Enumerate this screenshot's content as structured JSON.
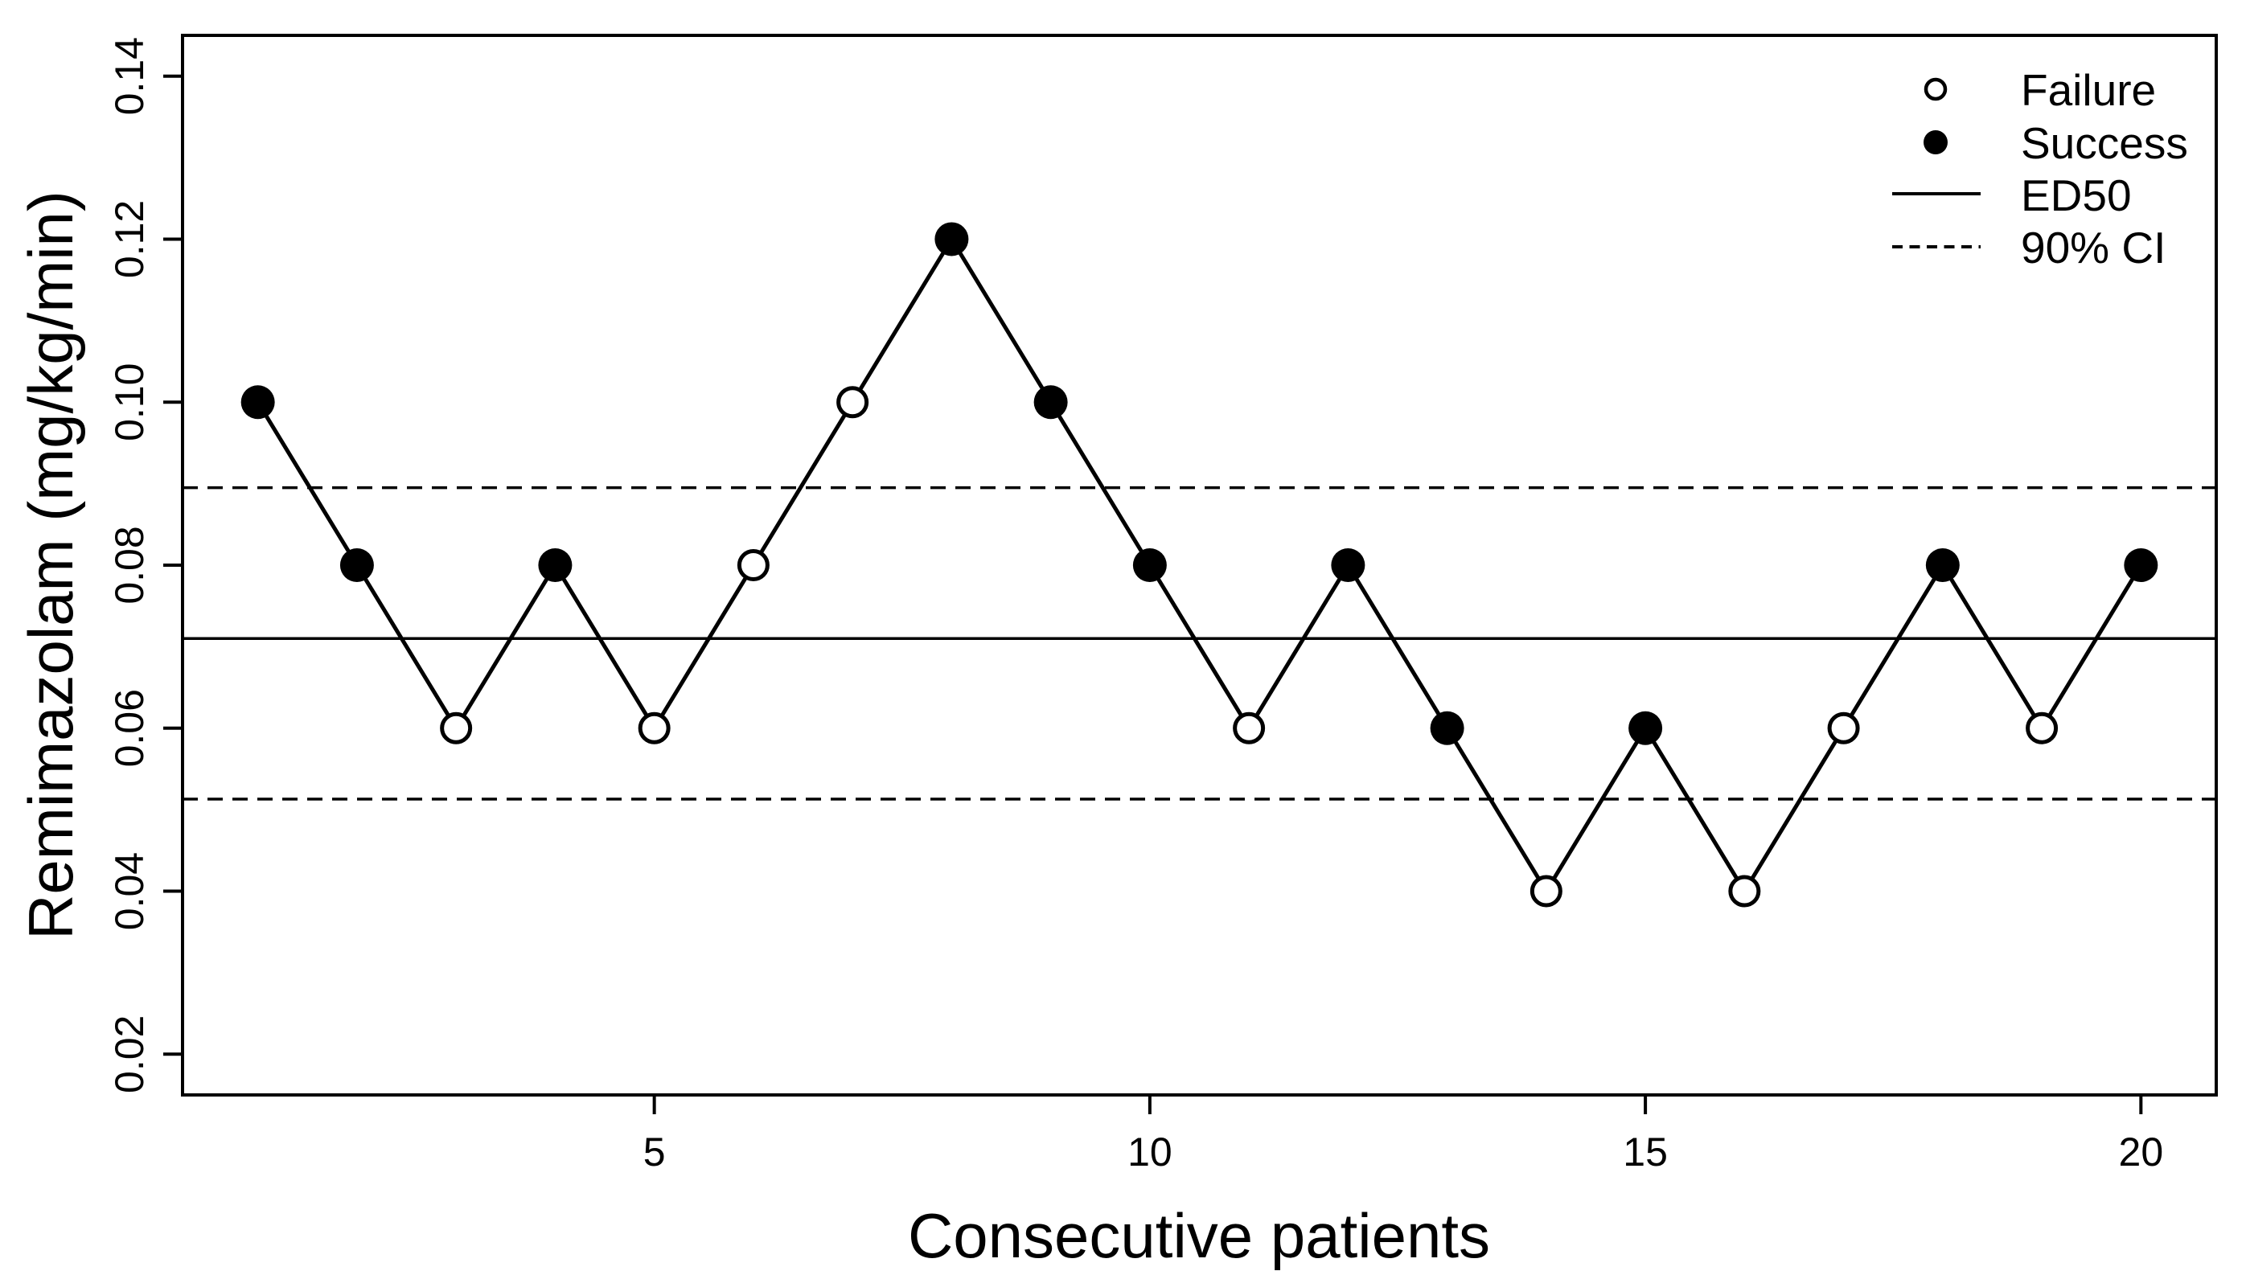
{
  "figure": {
    "background": "#ffffff",
    "foreground": "#000000"
  },
  "chart_data": {
    "type": "line",
    "title": "",
    "xlabel": "Consecutive patients",
    "ylabel": "Remimazolam (mg/kg/min)",
    "x": [
      1,
      2,
      3,
      4,
      5,
      6,
      7,
      8,
      9,
      10,
      11,
      12,
      13,
      14,
      15,
      16,
      17,
      18,
      19,
      20
    ],
    "series": [
      {
        "name": "Remimazolam dose (mg/kg/min)",
        "values": [
          0.1,
          0.08,
          0.06,
          0.08,
          0.06,
          0.08,
          0.1,
          0.12,
          0.1,
          0.08,
          0.06,
          0.08,
          0.06,
          0.04,
          0.06,
          0.04,
          0.06,
          0.08,
          0.06,
          0.08
        ]
      }
    ],
    "outcomes": [
      "success",
      "success",
      "failure",
      "success",
      "failure",
      "failure",
      "failure",
      "success",
      "success",
      "success",
      "failure",
      "success",
      "success",
      "failure",
      "success",
      "failure",
      "failure",
      "success",
      "failure",
      "success"
    ],
    "ed50": 0.071,
    "ci_lower": 0.0513,
    "ci_upper": 0.0895,
    "x_ticks": [
      5,
      10,
      15,
      20
    ],
    "y_ticks": [
      0.02,
      0.04,
      0.06,
      0.08,
      0.1,
      0.12,
      0.14
    ],
    "xlim": [
      0.24,
      20.76
    ],
    "ylim": [
      0.015,
      0.145
    ],
    "grid": false,
    "legend_position": "top-right",
    "legend": [
      {
        "marker": "open-circle",
        "label": "Failure"
      },
      {
        "marker": "filled-circle",
        "label": "Success"
      },
      {
        "marker": "solid-line",
        "label": "ED50"
      },
      {
        "marker": "dashed-line",
        "label": "90% CI"
      }
    ],
    "colors": {
      "foreground": "#000000",
      "background": "#ffffff"
    }
  }
}
